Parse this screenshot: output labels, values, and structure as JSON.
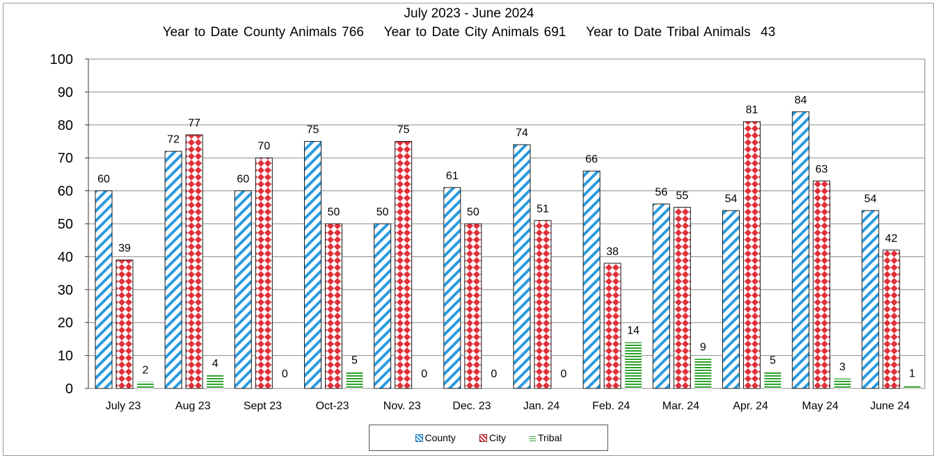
{
  "chart_data": {
    "type": "bar",
    "title": "July 2023 - June 2024",
    "subtitle": "Year to Date County Animals 766    Year to Date City Animals 691    Year to Date Tribal Animals  43",
    "categories": [
      "July 23",
      "Aug 23",
      "Sept 23",
      "Oct-23",
      "Nov. 23",
      "Dec. 23",
      "Jan. 24",
      "Feb. 24",
      "Mar. 24",
      "Apr. 24",
      "May 24",
      "June 24"
    ],
    "series": [
      {
        "name": "County",
        "values": [
          60,
          72,
          60,
          75,
          50,
          61,
          74,
          66,
          56,
          54,
          84,
          54
        ],
        "color": "#2a9be0"
      },
      {
        "name": "City",
        "values": [
          39,
          77,
          70,
          50,
          75,
          50,
          51,
          38,
          55,
          81,
          63,
          42
        ],
        "color": "#e0303a"
      },
      {
        "name": "Tribal",
        "values": [
          2,
          4,
          0,
          5,
          0,
          0,
          0,
          14,
          9,
          5,
          3,
          1
        ],
        "color": "#2aa02a"
      }
    ],
    "ylim": [
      0,
      100
    ],
    "yticks": [
      0,
      10,
      20,
      30,
      40,
      50,
      60,
      70,
      80,
      90,
      100
    ],
    "grid": true,
    "legend_position": "bottom"
  }
}
